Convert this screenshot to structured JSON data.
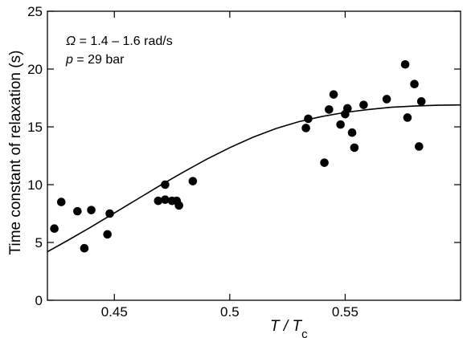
{
  "chart_data": {
    "type": "scatter",
    "xlabel_main": "T / T",
    "xlabel_sub": "c",
    "ylabel": "Time constant of relaxation (s)",
    "xlim": [
      0.421,
      0.6
    ],
    "ylim": [
      0,
      25
    ],
    "xticks": [
      0.45,
      0.5,
      0.55
    ],
    "xticklabels": [
      "0.45",
      "0.5",
      "0.55"
    ],
    "yticks": [
      0,
      5,
      10,
      15,
      20,
      25
    ],
    "yticklabels": [
      "0",
      "5",
      "10",
      "15",
      "20",
      "25"
    ],
    "grid": false,
    "annotation_line1_symbol": "Ω",
    "annotation_line1_text": " = 1.4 – 1.6 rad/s",
    "annotation_line2_symbol": "p",
    "annotation_line2_text": " = 29 bar",
    "series": [
      {
        "type": "scatter",
        "color": "#000000",
        "points": [
          [
            0.424,
            6.2
          ],
          [
            0.427,
            8.5
          ],
          [
            0.434,
            7.7
          ],
          [
            0.437,
            4.5
          ],
          [
            0.44,
            7.8
          ],
          [
            0.447,
            5.7
          ],
          [
            0.448,
            7.5
          ],
          [
            0.469,
            8.6
          ],
          [
            0.472,
            8.7
          ],
          [
            0.472,
            10.0
          ],
          [
            0.475,
            8.6
          ],
          [
            0.477,
            8.6
          ],
          [
            0.478,
            8.2
          ],
          [
            0.484,
            10.3
          ],
          [
            0.533,
            14.9
          ],
          [
            0.534,
            15.7
          ],
          [
            0.541,
            11.9
          ],
          [
            0.543,
            16.5
          ],
          [
            0.545,
            17.8
          ],
          [
            0.548,
            15.2
          ],
          [
            0.55,
            16.1
          ],
          [
            0.551,
            16.6
          ],
          [
            0.553,
            14.5
          ],
          [
            0.554,
            13.2
          ],
          [
            0.558,
            16.9
          ],
          [
            0.568,
            17.4
          ],
          [
            0.576,
            20.4
          ],
          [
            0.577,
            15.8
          ],
          [
            0.58,
            18.7
          ],
          [
            0.582,
            13.3
          ],
          [
            0.583,
            17.2
          ]
        ]
      },
      {
        "type": "line",
        "color": "#000000",
        "points": [
          [
            0.421,
            4.2
          ],
          [
            0.43,
            5.2
          ],
          [
            0.44,
            6.35
          ],
          [
            0.45,
            7.55
          ],
          [
            0.46,
            8.75
          ],
          [
            0.47,
            9.95
          ],
          [
            0.48,
            11.1
          ],
          [
            0.49,
            12.2
          ],
          [
            0.5,
            13.2
          ],
          [
            0.51,
            14.1
          ],
          [
            0.52,
            14.85
          ],
          [
            0.53,
            15.45
          ],
          [
            0.54,
            15.9
          ],
          [
            0.55,
            16.25
          ],
          [
            0.56,
            16.5
          ],
          [
            0.57,
            16.7
          ],
          [
            0.58,
            16.8
          ],
          [
            0.59,
            16.87
          ],
          [
            0.6,
            16.9
          ]
        ]
      }
    ]
  }
}
